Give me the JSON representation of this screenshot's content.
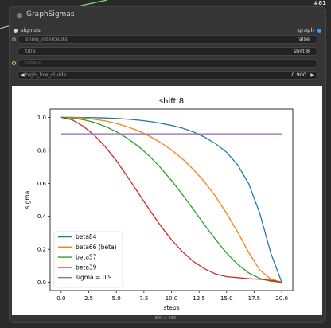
{
  "node": {
    "id_badge": "#81",
    "title": "GraphSigmas",
    "inputs": [
      {
        "label": "sigmas"
      }
    ],
    "outputs": [
      {
        "label": "graph"
      }
    ],
    "widgets": {
      "show_intercepts": {
        "label": "show_intercepts",
        "value": "false"
      },
      "title": {
        "label": "title",
        "value": "shift 8"
      },
      "labels": {
        "label": "labels",
        "value": ""
      },
      "high_low_divide": {
        "label": "high_low_divide",
        "value": "0.900"
      }
    },
    "image_caption": "840 × 480"
  },
  "chart_data": {
    "type": "line",
    "title": "shift 8",
    "xlabel": "steps",
    "ylabel": "sigma",
    "xlim": [
      -1,
      21
    ],
    "ylim": [
      -0.05,
      1.05
    ],
    "xticks": [
      0.0,
      2.5,
      5.0,
      7.5,
      10.0,
      12.5,
      15.0,
      17.5,
      20.0
    ],
    "xtick_labels": [
      "0.0",
      "2.5",
      "5.0",
      "7.5",
      "10.0",
      "12.5",
      "15.0",
      "17.5",
      "20.0"
    ],
    "yticks": [
      0.0,
      0.2,
      0.4,
      0.6,
      0.8,
      1.0
    ],
    "ytick_labels": [
      "0.0",
      "0.2",
      "0.4",
      "0.6",
      "0.8",
      "1.0"
    ],
    "legend_position": "lower-left",
    "series": [
      {
        "name": "beta84",
        "color": "#1f77b4",
        "x": [
          0,
          1,
          2,
          3,
          4,
          5,
          6,
          7,
          8,
          9,
          10,
          11,
          12,
          13,
          14,
          15,
          16,
          17,
          18,
          19,
          20
        ],
        "values": [
          1.0,
          1.0,
          0.999,
          0.998,
          0.996,
          0.993,
          0.989,
          0.983,
          0.975,
          0.964,
          0.951,
          0.934,
          0.911,
          0.88,
          0.84,
          0.788,
          0.712,
          0.598,
          0.42,
          0.178,
          0.0
        ]
      },
      {
        "name": "beta66 (beta)",
        "color": "#ff7f0e",
        "x": [
          0,
          1,
          2,
          3,
          4,
          5,
          6,
          7,
          8,
          9,
          10,
          11,
          12,
          13,
          14,
          15,
          16,
          17,
          18,
          19,
          20
        ],
        "values": [
          1.0,
          0.999,
          0.995,
          0.988,
          0.978,
          0.963,
          0.943,
          0.918,
          0.886,
          0.848,
          0.802,
          0.748,
          0.683,
          0.608,
          0.52,
          0.418,
          0.304,
          0.182,
          0.075,
          0.02,
          0.0
        ]
      },
      {
        "name": "beta57",
        "color": "#2ca02c",
        "x": [
          0,
          1,
          2,
          3,
          4,
          5,
          6,
          7,
          8,
          9,
          10,
          11,
          12,
          13,
          14,
          15,
          16,
          17,
          18,
          19,
          20
        ],
        "values": [
          1.0,
          0.996,
          0.986,
          0.969,
          0.945,
          0.913,
          0.873,
          0.824,
          0.765,
          0.696,
          0.617,
          0.531,
          0.441,
          0.348,
          0.259,
          0.177,
          0.109,
          0.057,
          0.024,
          0.007,
          0.0
        ]
      },
      {
        "name": "beta39",
        "color": "#d62728",
        "x": [
          0,
          1,
          2,
          3,
          4,
          5,
          6,
          7,
          8,
          9,
          10,
          11,
          12,
          13,
          14,
          15,
          16,
          17,
          18,
          19,
          20
        ],
        "values": [
          1.0,
          0.985,
          0.946,
          0.892,
          0.822,
          0.738,
          0.642,
          0.541,
          0.44,
          0.344,
          0.258,
          0.185,
          0.126,
          0.082,
          0.05,
          0.034,
          0.028,
          0.022,
          0.018,
          0.012,
          0.0
        ]
      },
      {
        "name": "sigma = 0.9",
        "color": "#9467bd",
        "x": [
          0,
          20
        ],
        "values": [
          0.9,
          0.9
        ]
      }
    ]
  }
}
